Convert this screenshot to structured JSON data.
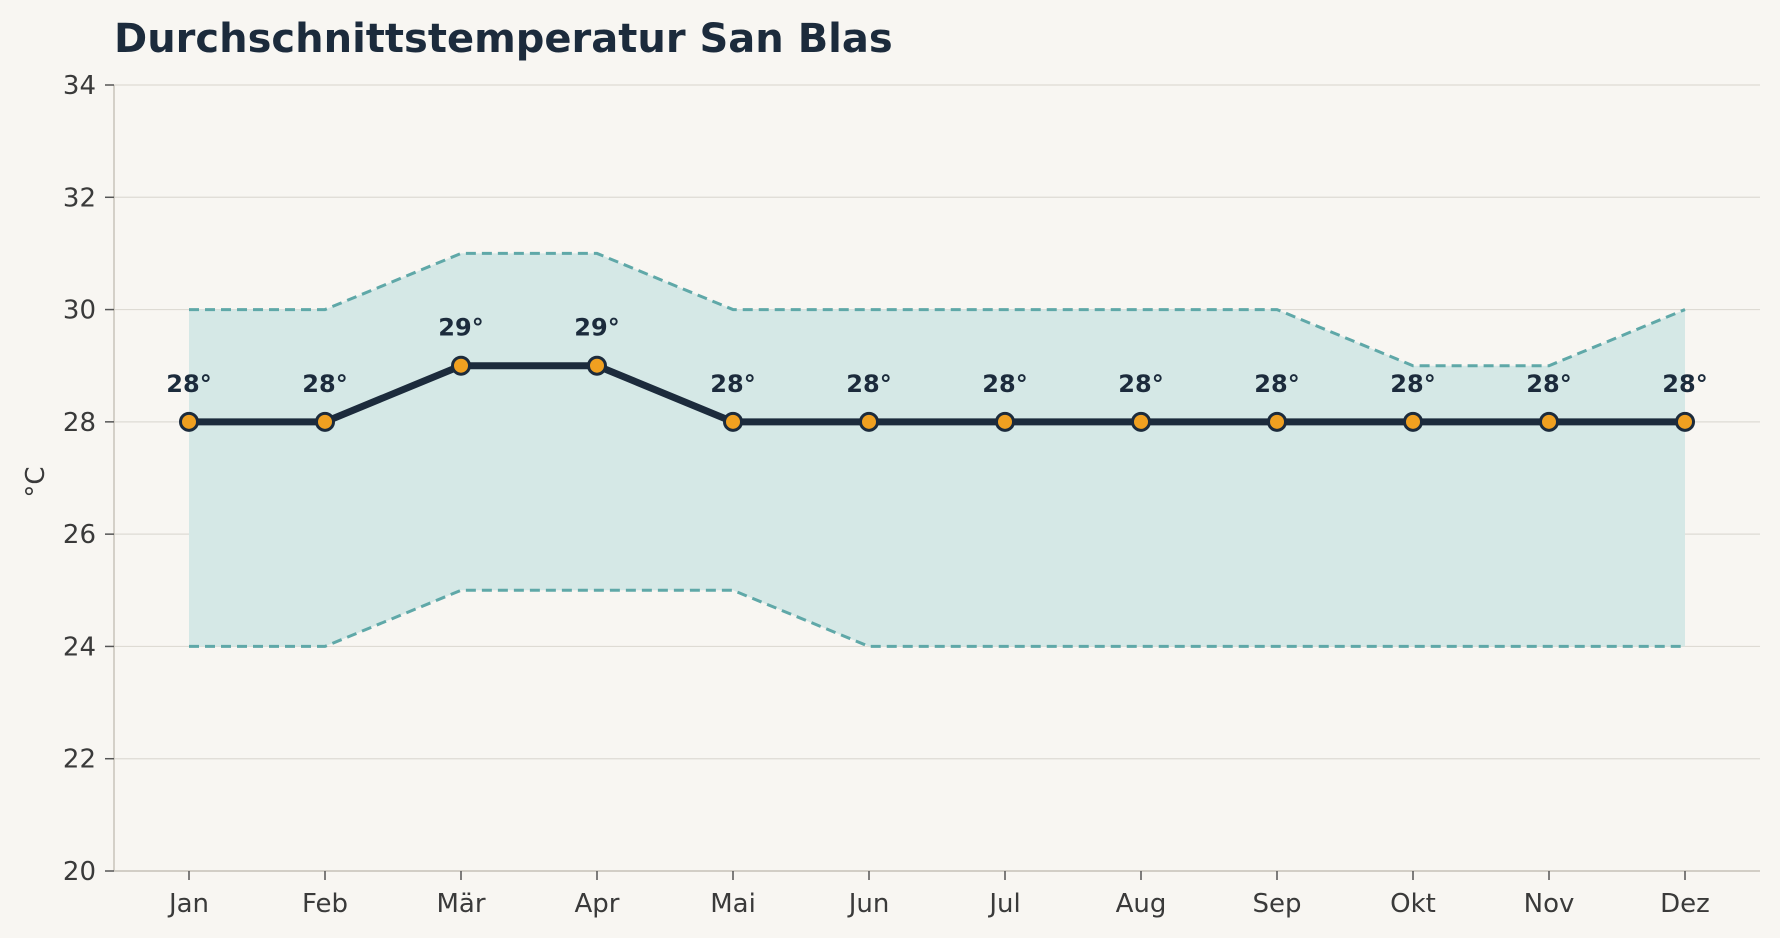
{
  "chart_data": {
    "type": "line",
    "title": "Durchschnittstemperatur San Blas",
    "xlabel": "",
    "ylabel": "°C",
    "ylim": [
      20,
      34
    ],
    "yticks": [
      20,
      22,
      24,
      26,
      28,
      30,
      32,
      34
    ],
    "grid": true,
    "legend": "none",
    "categories": [
      "Jan",
      "Feb",
      "Mär",
      "Apr",
      "Mai",
      "Jun",
      "Jul",
      "Aug",
      "Sep",
      "Okt",
      "Nov",
      "Dez"
    ],
    "values": [
      28,
      28,
      29,
      29,
      28,
      28,
      28,
      28,
      28,
      28,
      28,
      28
    ],
    "data_labels": [
      "28°",
      "28°",
      "29°",
      "29°",
      "28°",
      "28°",
      "28°",
      "28°",
      "28°",
      "28°",
      "28°",
      "28°"
    ],
    "band_upper": [
      30,
      30,
      31,
      31,
      30,
      30,
      30,
      30,
      30,
      29,
      29,
      30
    ],
    "band_lower": [
      24,
      24,
      25,
      25,
      25,
      24,
      24,
      24,
      24,
      24,
      24,
      24
    ],
    "colors": {
      "line": "#1c2b3c",
      "marker_fill": "#f0a020",
      "band_fill": "#d5e8e6",
      "band_edge": "#5fa8a8",
      "grid": "#dedbd4",
      "axis": "#c8c4ba"
    }
  }
}
